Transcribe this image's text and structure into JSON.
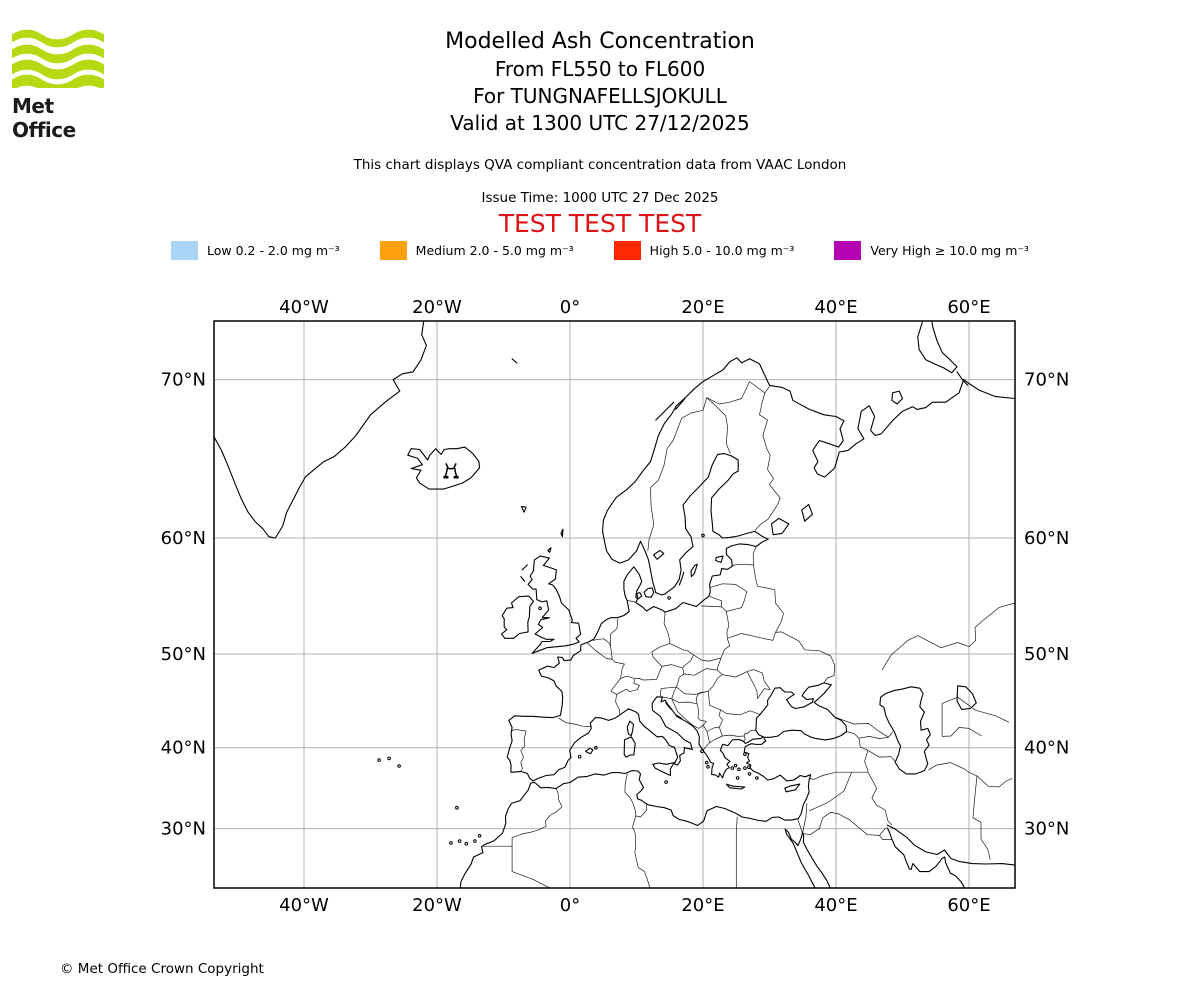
{
  "header": {
    "logo_text": "Met Office",
    "title": "Modelled Ash Concentration",
    "subtitle_fl": "From FL550 to FL600",
    "subtitle_volcano": "For TUNGNAFELLSJOKULL",
    "subtitle_valid": "Valid at 1300 UTC 27/12/2025",
    "description": "This chart displays QVA compliant concentration data from VAAC London",
    "issue_time": "Issue Time: 1000 UTC 27 Dec 2025",
    "test_banner": "TEST TEST TEST",
    "test_banner_color": "#dd1414",
    "logo_color": "#b5d912"
  },
  "legend": {
    "items": [
      {
        "label": "Low 0.2 - 2.0 mg m⁻³",
        "color": "#a9d4f5"
      },
      {
        "label": "Medium 2.0 - 5.0 mg m⁻³",
        "color": "#ffa10e"
      },
      {
        "label": "High 5.0 - 10.0 mg m⁻³",
        "color": "#ff2800"
      },
      {
        "label": "Very High ≥ 10.0 mg m⁻³",
        "color": "#b303b3"
      }
    ]
  },
  "map": {
    "projection": "Mercator",
    "extent": {
      "west_lon": -53.5,
      "east_lon": 66.9,
      "south_lat": 22.0,
      "north_lat": 72.8
    },
    "grid_color": "#b0b0b0",
    "lon_gridlines": [
      {
        "value": -40,
        "label": "40°W"
      },
      {
        "value": -20,
        "label": "20°W"
      },
      {
        "value": 0,
        "label": "0°"
      },
      {
        "value": 20,
        "label": "20°E"
      },
      {
        "value": 40,
        "label": "40°E"
      },
      {
        "value": 60,
        "label": "60°E"
      }
    ],
    "lat_gridlines": [
      {
        "value": 70,
        "label": "70°N"
      },
      {
        "value": 60,
        "label": "60°N"
      },
      {
        "value": 50,
        "label": "50°N"
      },
      {
        "value": 40,
        "label": "40°N"
      },
      {
        "value": 30,
        "label": "30°N"
      }
    ],
    "volcano_marker": {
      "name": "TUNGNAFELLSJOKULL",
      "lon": -17.9,
      "lat": 64.75
    }
  },
  "footer": {
    "copyright": "© Met Office Crown Copyright"
  }
}
